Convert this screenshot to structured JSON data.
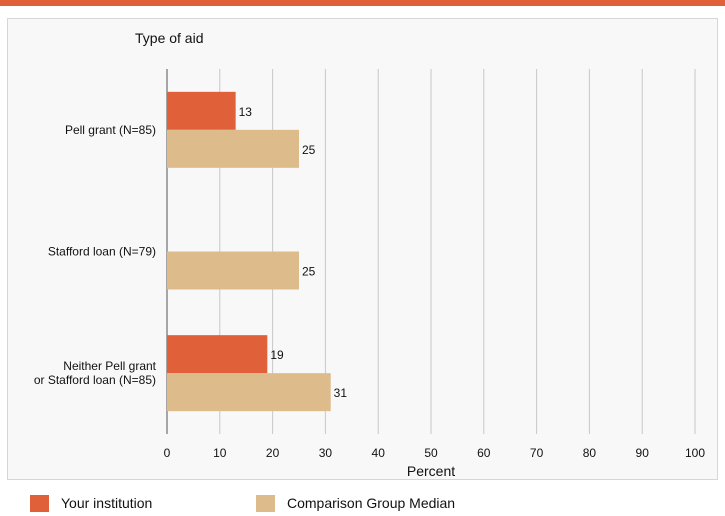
{
  "chart_data": {
    "type": "bar",
    "orientation": "horizontal",
    "title": "Type of aid",
    "xlabel": "Percent",
    "xlim": [
      0,
      100
    ],
    "xticks": [
      0,
      10,
      20,
      30,
      40,
      50,
      60,
      70,
      80,
      90,
      100
    ],
    "grid": true,
    "legend_position": "bottom",
    "categories": [
      [
        "Pell grant  (N=85)"
      ],
      [
        "Stafford loan (N=79)"
      ],
      [
        "Neither Pell grant",
        "or Stafford loan (N=85)"
      ]
    ],
    "series": [
      {
        "name": "Your institution",
        "color": "#e0603a",
        "values": [
          13,
          null,
          19
        ]
      },
      {
        "name": "Comparison Group Median",
        "color": "#debb8a",
        "values": [
          25,
          25,
          31
        ]
      }
    ]
  }
}
